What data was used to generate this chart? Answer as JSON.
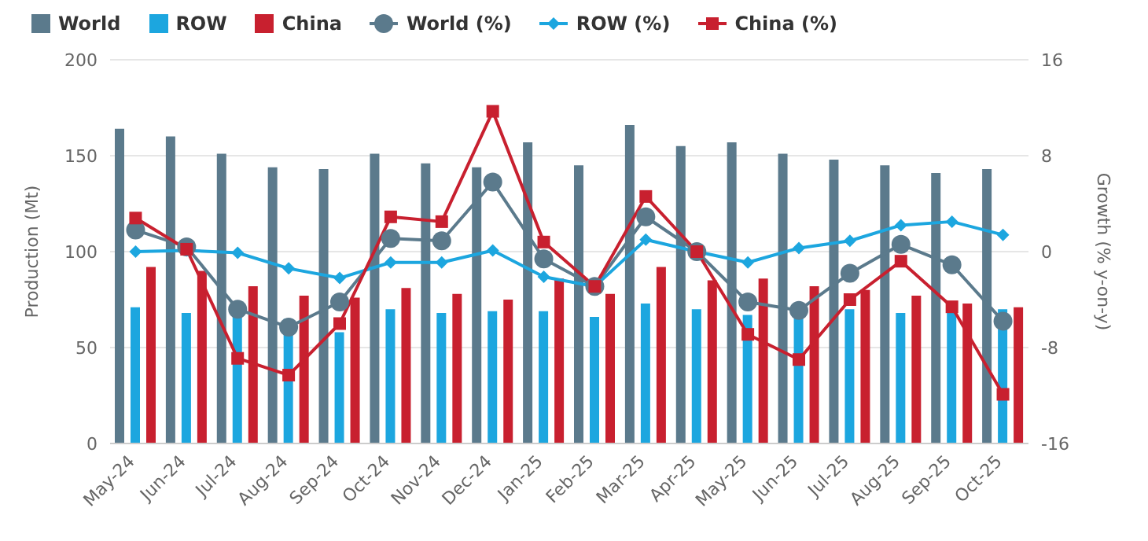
{
  "chart_data": {
    "type": "bar",
    "ylabel": "Production (Mt)",
    "y2label": "Growth (% y-on-y)",
    "categories": [
      "May-24",
      "Jun-24",
      "Jul-24",
      "Aug-24",
      "Sep-24",
      "Oct-24",
      "Nov-24",
      "Dec-24",
      "Jan-25",
      "Feb-25",
      "Mar-25",
      "Apr-25",
      "May-25",
      "Jun-25",
      "Jul-25",
      "Aug-25",
      "Sep-25",
      "Oct-25"
    ],
    "series": [
      {
        "name": "World",
        "color": "#5b7a8c",
        "values": [
          164,
          160,
          151,
          144,
          143,
          151,
          146,
          144,
          157,
          145,
          166,
          155,
          157,
          151,
          148,
          145,
          141,
          143
        ]
      },
      {
        "name": "ROW",
        "color": "#1ca6df",
        "values": [
          71,
          68,
          67,
          65,
          58,
          70,
          68,
          69,
          69,
          66,
          73,
          70,
          67,
          67,
          70,
          68,
          68,
          70
        ]
      },
      {
        "name": "China",
        "color": "#c8202f",
        "values": [
          92,
          90,
          82,
          77,
          76,
          81,
          78,
          75,
          86,
          78,
          92,
          85,
          86,
          82,
          80,
          77,
          73,
          71
        ]
      },
      {
        "name": "World (%)",
        "type": "line",
        "axis": "y2",
        "marker": "circle",
        "color": "#5b7a8c",
        "values": [
          1.8,
          0.4,
          -4.8,
          -6.3,
          -4.2,
          1.1,
          0.9,
          5.8,
          -0.6,
          -2.9,
          2.9,
          0,
          -4.2,
          -4.9,
          -1.8,
          0.6,
          -1.1,
          -5.8
        ]
      },
      {
        "name": "ROW (%)",
        "type": "line",
        "axis": "y2",
        "marker": "diamond",
        "color": "#1ca6df",
        "values": [
          0,
          0.1,
          -0.1,
          -1.4,
          -2.2,
          -0.9,
          -0.9,
          0.1,
          -2.1,
          -2.9,
          1.0,
          0,
          -0.9,
          0.3,
          0.9,
          2.2,
          2.5,
          1.4
        ]
      },
      {
        "name": "China (%)",
        "type": "line",
        "axis": "y2",
        "marker": "square",
        "color": "#c8202f",
        "values": [
          2.8,
          0.2,
          -8.9,
          -10.3,
          -6.0,
          2.9,
          2.5,
          11.7,
          0.8,
          -2.9,
          4.6,
          0,
          -6.9,
          -9.0,
          -4.0,
          -0.8,
          -4.6,
          -11.9
        ]
      }
    ],
    "ylim": [
      0,
      200
    ],
    "yticks": [
      0,
      50,
      100,
      150,
      200
    ],
    "y2lim": [
      -16,
      16
    ],
    "y2ticks": [
      -16,
      -8,
      0,
      8,
      16
    ],
    "grid": "y",
    "legend": "top left"
  }
}
